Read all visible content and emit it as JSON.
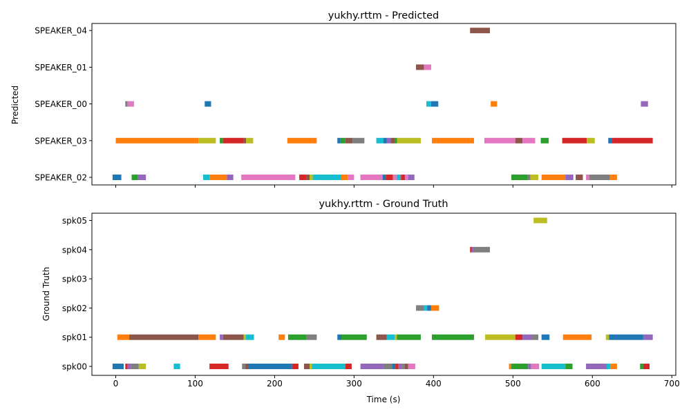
{
  "colors": [
    "#1f77b4",
    "#ff7f0e",
    "#2ca02c",
    "#d62728",
    "#9467bd",
    "#8c564b",
    "#e377c2",
    "#7f7f7f",
    "#bcbd22",
    "#17becf"
  ],
  "xaxis": {
    "label": "Time (s)",
    "lim": [
      -30,
      705
    ],
    "ticks": [
      0,
      100,
      200,
      300,
      400,
      500,
      600,
      700
    ]
  },
  "chart_data": [
    {
      "type": "bar",
      "title": "yukhy.rttm - Predicted",
      "ylabel": "Predicted",
      "xlabel": "",
      "categories": [
        "SPEAKER_02",
        "SPEAKER_03",
        "SPEAKER_00",
        "SPEAKER_01",
        "SPEAKER_04"
      ],
      "segments": [
        {
          "speaker": "SPEAKER_04",
          "start": 446,
          "end": 471,
          "color": "#8c564b"
        },
        {
          "speaker": "SPEAKER_01",
          "start": 378,
          "end": 388,
          "color": "#8c564b"
        },
        {
          "speaker": "SPEAKER_01",
          "start": 388,
          "end": 397,
          "color": "#e377c2"
        },
        {
          "speaker": "SPEAKER_00",
          "start": 12,
          "end": 15,
          "color": "#7f7f7f"
        },
        {
          "speaker": "SPEAKER_00",
          "start": 15,
          "end": 23,
          "color": "#e377c2"
        },
        {
          "speaker": "SPEAKER_00",
          "start": 112,
          "end": 120,
          "color": "#1f77b4"
        },
        {
          "speaker": "SPEAKER_00",
          "start": 391,
          "end": 397,
          "color": "#17becf"
        },
        {
          "speaker": "SPEAKER_00",
          "start": 397,
          "end": 406,
          "color": "#1f77b4"
        },
        {
          "speaker": "SPEAKER_00",
          "start": 472,
          "end": 480,
          "color": "#ff7f0e"
        },
        {
          "speaker": "SPEAKER_00",
          "start": 661,
          "end": 670,
          "color": "#9467bd"
        },
        {
          "speaker": "SPEAKER_03",
          "start": 0,
          "end": 104,
          "color": "#ff7f0e"
        },
        {
          "speaker": "SPEAKER_03",
          "start": 104,
          "end": 126,
          "color": "#bcbd22"
        },
        {
          "speaker": "SPEAKER_03",
          "start": 131,
          "end": 135,
          "color": "#2ca02c"
        },
        {
          "speaker": "SPEAKER_03",
          "start": 135,
          "end": 161,
          "color": "#d62728"
        },
        {
          "speaker": "SPEAKER_03",
          "start": 161,
          "end": 164,
          "color": "#8c564b"
        },
        {
          "speaker": "SPEAKER_03",
          "start": 164,
          "end": 173,
          "color": "#bcbd22"
        },
        {
          "speaker": "SPEAKER_03",
          "start": 216,
          "end": 253,
          "color": "#ff7f0e"
        },
        {
          "speaker": "SPEAKER_03",
          "start": 279,
          "end": 283,
          "color": "#1f77b4"
        },
        {
          "speaker": "SPEAKER_03",
          "start": 283,
          "end": 289,
          "color": "#2ca02c"
        },
        {
          "speaker": "SPEAKER_03",
          "start": 289,
          "end": 298,
          "color": "#8c564b"
        },
        {
          "speaker": "SPEAKER_03",
          "start": 298,
          "end": 313,
          "color": "#7f7f7f"
        },
        {
          "speaker": "SPEAKER_03",
          "start": 328,
          "end": 337,
          "color": "#17becf"
        },
        {
          "speaker": "SPEAKER_03",
          "start": 337,
          "end": 341,
          "color": "#1f77b4"
        },
        {
          "speaker": "SPEAKER_03",
          "start": 341,
          "end": 346,
          "color": "#9467bd"
        },
        {
          "speaker": "SPEAKER_03",
          "start": 346,
          "end": 351,
          "color": "#8c564b"
        },
        {
          "speaker": "SPEAKER_03",
          "start": 351,
          "end": 354,
          "color": "#2ca02c"
        },
        {
          "speaker": "SPEAKER_03",
          "start": 354,
          "end": 384,
          "color": "#bcbd22"
        },
        {
          "speaker": "SPEAKER_03",
          "start": 398,
          "end": 451,
          "color": "#ff7f0e"
        },
        {
          "speaker": "SPEAKER_03",
          "start": 464,
          "end": 503,
          "color": "#e377c2"
        },
        {
          "speaker": "SPEAKER_03",
          "start": 503,
          "end": 512,
          "color": "#8c564b"
        },
        {
          "speaker": "SPEAKER_03",
          "start": 512,
          "end": 528,
          "color": "#e377c2"
        },
        {
          "speaker": "SPEAKER_03",
          "start": 535,
          "end": 545,
          "color": "#2ca02c"
        },
        {
          "speaker": "SPEAKER_03",
          "start": 562,
          "end": 593,
          "color": "#d62728"
        },
        {
          "speaker": "SPEAKER_03",
          "start": 593,
          "end": 603,
          "color": "#bcbd22"
        },
        {
          "speaker": "SPEAKER_03",
          "start": 620,
          "end": 625,
          "color": "#1f77b4"
        },
        {
          "speaker": "SPEAKER_03",
          "start": 625,
          "end": 676,
          "color": "#d62728"
        },
        {
          "speaker": "SPEAKER_02",
          "start": -4,
          "end": 7,
          "color": "#1f77b4"
        },
        {
          "speaker": "SPEAKER_02",
          "start": 20,
          "end": 28,
          "color": "#2ca02c"
        },
        {
          "speaker": "SPEAKER_02",
          "start": 28,
          "end": 38,
          "color": "#9467bd"
        },
        {
          "speaker": "SPEAKER_02",
          "start": 110,
          "end": 118,
          "color": "#17becf"
        },
        {
          "speaker": "SPEAKER_02",
          "start": 118,
          "end": 140,
          "color": "#ff7f0e"
        },
        {
          "speaker": "SPEAKER_02",
          "start": 140,
          "end": 148,
          "color": "#9467bd"
        },
        {
          "speaker": "SPEAKER_02",
          "start": 158,
          "end": 226,
          "color": "#e377c2"
        },
        {
          "speaker": "SPEAKER_02",
          "start": 231,
          "end": 240,
          "color": "#d62728"
        },
        {
          "speaker": "SPEAKER_02",
          "start": 240,
          "end": 244,
          "color": "#8c564b"
        },
        {
          "speaker": "SPEAKER_02",
          "start": 244,
          "end": 248,
          "color": "#bcbd22"
        },
        {
          "speaker": "SPEAKER_02",
          "start": 248,
          "end": 284,
          "color": "#17becf"
        },
        {
          "speaker": "SPEAKER_02",
          "start": 284,
          "end": 292,
          "color": "#ff7f0e"
        },
        {
          "speaker": "SPEAKER_02",
          "start": 292,
          "end": 300,
          "color": "#e377c2"
        },
        {
          "speaker": "SPEAKER_02",
          "start": 308,
          "end": 336,
          "color": "#e377c2"
        },
        {
          "speaker": "SPEAKER_02",
          "start": 336,
          "end": 340,
          "color": "#1f77b4"
        },
        {
          "speaker": "SPEAKER_02",
          "start": 340,
          "end": 349,
          "color": "#d62728"
        },
        {
          "speaker": "SPEAKER_02",
          "start": 349,
          "end": 354,
          "color": "#e377c2"
        },
        {
          "speaker": "SPEAKER_02",
          "start": 354,
          "end": 359,
          "color": "#17becf"
        },
        {
          "speaker": "SPEAKER_02",
          "start": 359,
          "end": 364,
          "color": "#d62728"
        },
        {
          "speaker": "SPEAKER_02",
          "start": 364,
          "end": 368,
          "color": "#e377c2"
        },
        {
          "speaker": "SPEAKER_02",
          "start": 368,
          "end": 376,
          "color": "#9467bd"
        },
        {
          "speaker": "SPEAKER_02",
          "start": 498,
          "end": 518,
          "color": "#2ca02c"
        },
        {
          "speaker": "SPEAKER_02",
          "start": 518,
          "end": 522,
          "color": "#7f7f7f"
        },
        {
          "speaker": "SPEAKER_02",
          "start": 522,
          "end": 532,
          "color": "#bcbd22"
        },
        {
          "speaker": "SPEAKER_02",
          "start": 536,
          "end": 566,
          "color": "#ff7f0e"
        },
        {
          "speaker": "SPEAKER_02",
          "start": 566,
          "end": 576,
          "color": "#9467bd"
        },
        {
          "speaker": "SPEAKER_02",
          "start": 579,
          "end": 588,
          "color": "#8c564b"
        },
        {
          "speaker": "SPEAKER_02",
          "start": 592,
          "end": 596,
          "color": "#e377c2"
        },
        {
          "speaker": "SPEAKER_02",
          "start": 596,
          "end": 622,
          "color": "#7f7f7f"
        },
        {
          "speaker": "SPEAKER_02",
          "start": 622,
          "end": 631,
          "color": "#ff7f0e"
        }
      ]
    },
    {
      "type": "bar",
      "title": "yukhy.rttm - Ground Truth",
      "ylabel": "Ground Truth",
      "xlabel": "Time (s)",
      "categories": [
        "spk00",
        "spk01",
        "spk02",
        "spk03",
        "spk04",
        "spk05"
      ],
      "segments": [
        {
          "speaker": "spk05",
          "start": 526,
          "end": 543,
          "color": "#bcbd22"
        },
        {
          "speaker": "spk04",
          "start": 446,
          "end": 448,
          "color": "#d62728"
        },
        {
          "speaker": "spk04",
          "start": 448,
          "end": 451,
          "color": "#9467bd"
        },
        {
          "speaker": "spk04",
          "start": 451,
          "end": 471,
          "color": "#7f7f7f"
        },
        {
          "speaker": "spk02",
          "start": 378,
          "end": 388,
          "color": "#7f7f7f"
        },
        {
          "speaker": "spk02",
          "start": 388,
          "end": 392,
          "color": "#17becf"
        },
        {
          "speaker": "spk02",
          "start": 392,
          "end": 397,
          "color": "#1f77b4"
        },
        {
          "speaker": "spk02",
          "start": 397,
          "end": 407,
          "color": "#ff7f0e"
        },
        {
          "speaker": "spk01",
          "start": 2,
          "end": 17,
          "color": "#ff7f0e"
        },
        {
          "speaker": "spk01",
          "start": 17,
          "end": 104,
          "color": "#8c564b"
        },
        {
          "speaker": "spk01",
          "start": 104,
          "end": 126,
          "color": "#ff7f0e"
        },
        {
          "speaker": "spk01",
          "start": 131,
          "end": 135,
          "color": "#9467bd"
        },
        {
          "speaker": "spk01",
          "start": 135,
          "end": 161,
          "color": "#8c564b"
        },
        {
          "speaker": "spk01",
          "start": 161,
          "end": 164,
          "color": "#bcbd22"
        },
        {
          "speaker": "spk01",
          "start": 164,
          "end": 174,
          "color": "#17becf"
        },
        {
          "speaker": "spk01",
          "start": 205,
          "end": 213,
          "color": "#ff7f0e"
        },
        {
          "speaker": "spk01",
          "start": 217,
          "end": 240,
          "color": "#2ca02c"
        },
        {
          "speaker": "spk01",
          "start": 240,
          "end": 253,
          "color": "#7f7f7f"
        },
        {
          "speaker": "spk01",
          "start": 279,
          "end": 284,
          "color": "#1f77b4"
        },
        {
          "speaker": "spk01",
          "start": 284,
          "end": 316,
          "color": "#2ca02c"
        },
        {
          "speaker": "spk01",
          "start": 328,
          "end": 341,
          "color": "#8c564b"
        },
        {
          "speaker": "spk01",
          "start": 341,
          "end": 351,
          "color": "#17becf"
        },
        {
          "speaker": "spk01",
          "start": 351,
          "end": 354,
          "color": "#bcbd22"
        },
        {
          "speaker": "spk01",
          "start": 354,
          "end": 384,
          "color": "#2ca02c"
        },
        {
          "speaker": "spk01",
          "start": 398,
          "end": 451,
          "color": "#2ca02c"
        },
        {
          "speaker": "spk01",
          "start": 465,
          "end": 503,
          "color": "#bcbd22"
        },
        {
          "speaker": "spk01",
          "start": 503,
          "end": 512,
          "color": "#d62728"
        },
        {
          "speaker": "spk01",
          "start": 512,
          "end": 524,
          "color": "#9467bd"
        },
        {
          "speaker": "spk01",
          "start": 524,
          "end": 532,
          "color": "#7f7f7f"
        },
        {
          "speaker": "spk01",
          "start": 536,
          "end": 546,
          "color": "#1f77b4"
        },
        {
          "speaker": "spk01",
          "start": 563,
          "end": 599,
          "color": "#ff7f0e"
        },
        {
          "speaker": "spk01",
          "start": 617,
          "end": 621,
          "color": "#bcbd22"
        },
        {
          "speaker": "spk01",
          "start": 621,
          "end": 664,
          "color": "#1f77b4"
        },
        {
          "speaker": "spk01",
          "start": 664,
          "end": 676,
          "color": "#9467bd"
        },
        {
          "speaker": "spk00",
          "start": -4,
          "end": 10,
          "color": "#1f77b4"
        },
        {
          "speaker": "spk00",
          "start": 12,
          "end": 15,
          "color": "#d62728"
        },
        {
          "speaker": "spk00",
          "start": 15,
          "end": 19,
          "color": "#9467bd"
        },
        {
          "speaker": "spk00",
          "start": 19,
          "end": 29,
          "color": "#7f7f7f"
        },
        {
          "speaker": "spk00",
          "start": 29,
          "end": 38,
          "color": "#bcbd22"
        },
        {
          "speaker": "spk00",
          "start": 73,
          "end": 81,
          "color": "#17becf"
        },
        {
          "speaker": "spk00",
          "start": 118,
          "end": 142,
          "color": "#d62728"
        },
        {
          "speaker": "spk00",
          "start": 159,
          "end": 163,
          "color": "#7f7f7f"
        },
        {
          "speaker": "spk00",
          "start": 163,
          "end": 167,
          "color": "#8c564b"
        },
        {
          "speaker": "spk00",
          "start": 167,
          "end": 222,
          "color": "#1f77b4"
        },
        {
          "speaker": "spk00",
          "start": 222,
          "end": 230,
          "color": "#d62728"
        },
        {
          "speaker": "spk00",
          "start": 237,
          "end": 244,
          "color": "#8c564b"
        },
        {
          "speaker": "spk00",
          "start": 244,
          "end": 247,
          "color": "#bcbd22"
        },
        {
          "speaker": "spk00",
          "start": 247,
          "end": 289,
          "color": "#17becf"
        },
        {
          "speaker": "spk00",
          "start": 289,
          "end": 297,
          "color": "#d62728"
        },
        {
          "speaker": "spk00",
          "start": 308,
          "end": 337,
          "color": "#9467bd"
        },
        {
          "speaker": "spk00",
          "start": 337,
          "end": 348,
          "color": "#7f7f7f"
        },
        {
          "speaker": "spk00",
          "start": 348,
          "end": 352,
          "color": "#1f77b4"
        },
        {
          "speaker": "spk00",
          "start": 352,
          "end": 356,
          "color": "#d62728"
        },
        {
          "speaker": "spk00",
          "start": 356,
          "end": 360,
          "color": "#9467bd"
        },
        {
          "speaker": "spk00",
          "start": 360,
          "end": 364,
          "color": "#7f7f7f"
        },
        {
          "speaker": "spk00",
          "start": 364,
          "end": 368,
          "color": "#8c564b"
        },
        {
          "speaker": "spk00",
          "start": 368,
          "end": 377,
          "color": "#e377c2"
        },
        {
          "speaker": "spk00",
          "start": 495,
          "end": 498,
          "color": "#ff7f0e"
        },
        {
          "speaker": "spk00",
          "start": 498,
          "end": 519,
          "color": "#2ca02c"
        },
        {
          "speaker": "spk00",
          "start": 519,
          "end": 523,
          "color": "#9467bd"
        },
        {
          "speaker": "spk00",
          "start": 523,
          "end": 533,
          "color": "#e377c2"
        },
        {
          "speaker": "spk00",
          "start": 536,
          "end": 566,
          "color": "#17becf"
        },
        {
          "speaker": "spk00",
          "start": 566,
          "end": 575,
          "color": "#2ca02c"
        },
        {
          "speaker": "spk00",
          "start": 592,
          "end": 618,
          "color": "#9467bd"
        },
        {
          "speaker": "spk00",
          "start": 618,
          "end": 623,
          "color": "#17becf"
        },
        {
          "speaker": "spk00",
          "start": 623,
          "end": 631,
          "color": "#ff7f0e"
        },
        {
          "speaker": "spk00",
          "start": 660,
          "end": 664,
          "color": "#2ca02c"
        },
        {
          "speaker": "spk00",
          "start": 664,
          "end": 672,
          "color": "#d62728"
        }
      ]
    }
  ]
}
